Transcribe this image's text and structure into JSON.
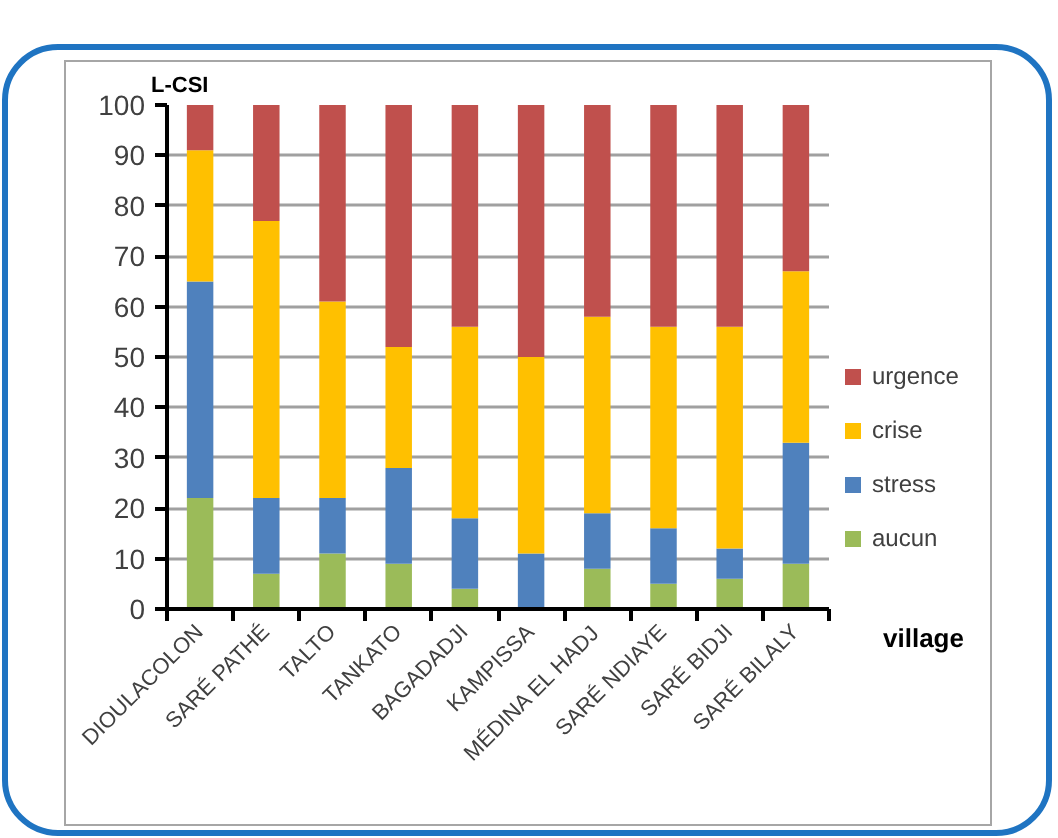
{
  "chart_data": {
    "type": "bar",
    "stacked": true,
    "xlabel": "village",
    "ylabel": "L-CSI",
    "categories": [
      "DIOULACOLON",
      "SARÉ PATHÉ",
      "TALTO",
      "TANKATO",
      "BAGADADJI",
      "KAMPISSA",
      "MÉDINA EL HADJ",
      "SARÉ NDIAYE",
      "SARÉ BIDJI",
      "SARÉ BILALY"
    ],
    "series": [
      {
        "name": "aucun",
        "color": "#9bbb59",
        "values": [
          22,
          7,
          11,
          9,
          4,
          0,
          8,
          5,
          6,
          9
        ]
      },
      {
        "name": "stress",
        "color": "#4f81bd",
        "values": [
          43,
          15,
          11,
          19,
          14,
          11,
          11,
          11,
          6,
          24
        ]
      },
      {
        "name": "crise",
        "color": "#ffc000",
        "values": [
          26,
          55,
          39,
          24,
          38,
          39,
          39,
          40,
          44,
          34
        ]
      },
      {
        "name": "urgence",
        "color": "#c0504d",
        "values": [
          9,
          23,
          39,
          48,
          44,
          50,
          42,
          44,
          44,
          33
        ]
      }
    ],
    "ylim": [
      0,
      100
    ],
    "yticks": [
      0,
      10,
      20,
      30,
      40,
      50,
      60,
      70,
      80,
      90,
      100
    ],
    "grid": "y",
    "legend": "right"
  }
}
